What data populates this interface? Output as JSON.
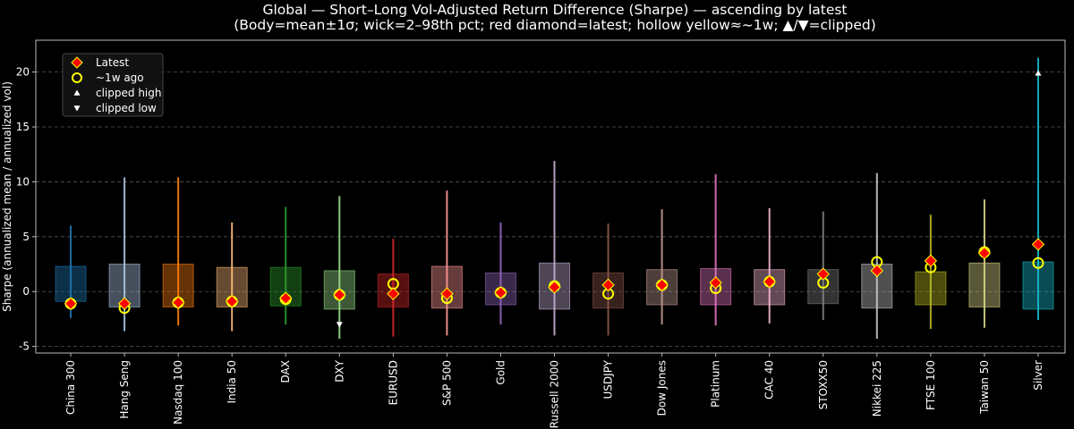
{
  "chart_data": {
    "type": "range",
    "title": "Global — Short–Long Vol-Adjusted Return Difference (Sharpe) — ascending by latest",
    "subtitle": "(Body=mean±1σ; wick=2–98th pct; red diamond=latest; hollow yellow≈~1w; ▲/▼=clipped)",
    "y_label": "Sharpe (annualized mean / annualized vol)",
    "categories": [
      "China 300",
      "Hang Seng",
      "Nasdaq 100",
      "India 50",
      "DAX",
      "DXY",
      "EURUSD",
      "S&P 500",
      "Gold",
      "Russell 2000",
      "USDJPY",
      "Dow Jones",
      "Platinum",
      "CAC 40",
      "STOXX50",
      "Nikkei 225",
      "FTSE 100",
      "Taiwan 50",
      "Silver"
    ],
    "colors": [
      "#1f77b4",
      "#aec7e8",
      "#ff7f0e",
      "#ffbb78",
      "#2ca02c",
      "#98df8a",
      "#d62728",
      "#ff9896",
      "#9467bd",
      "#c5b0d5",
      "#8c564b",
      "#c49c94",
      "#e377c2",
      "#f7b6d2",
      "#7f7f7f",
      "#c7c7c7",
      "#bcbd22",
      "#dbdb8d",
      "#17becf"
    ],
    "body_top": [
      2.3,
      2.5,
      2.5,
      2.2,
      2.2,
      1.9,
      1.6,
      2.3,
      1.7,
      2.6,
      1.7,
      2.0,
      2.1,
      2.0,
      2.0,
      2.5,
      1.8,
      2.6,
      2.7
    ],
    "body_bottom": [
      -0.9,
      -1.4,
      -1.4,
      -1.4,
      -1.3,
      -1.6,
      -1.4,
      -1.5,
      -1.2,
      -1.6,
      -1.5,
      -1.2,
      -1.2,
      -1.2,
      -1.1,
      -1.5,
      -1.2,
      -1.4,
      -1.6
    ],
    "wick_top": [
      6.0,
      10.4,
      10.4,
      6.3,
      7.7,
      8.7,
      4.8,
      9.2,
      6.3,
      11.9,
      6.2,
      7.5,
      10.7,
      7.6,
      7.3,
      10.8,
      7.0,
      8.4,
      21.3
    ],
    "wick_bottom": [
      -2.4,
      -3.6,
      -3.1,
      -3.6,
      -3.0,
      -4.3,
      -4.1,
      -4.0,
      -3.0,
      -4.0,
      -4.0,
      -3.0,
      -3.1,
      -2.9,
      -2.6,
      -4.3,
      -3.4,
      -3.3,
      -2.6
    ],
    "series": [
      {
        "name": "Latest",
        "color": "#ff0000",
        "values": [
          -1.1,
          -1.1,
          -1.0,
          -0.9,
          -0.6,
          -0.3,
          -0.2,
          -0.2,
          -0.1,
          0.4,
          0.6,
          0.6,
          0.8,
          0.9,
          1.6,
          1.9,
          2.8,
          3.5,
          4.3
        ]
      },
      {
        "name": "~1w ago",
        "color": "#ffff00",
        "values": [
          -1.1,
          -1.5,
          -1.0,
          -0.9,
          -0.7,
          -0.3,
          0.7,
          -0.6,
          -0.1,
          0.5,
          -0.2,
          0.6,
          0.3,
          0.9,
          0.8,
          2.7,
          2.2,
          3.6,
          2.6
        ]
      },
      {
        "name": "clipped high",
        "color": "#ffffff",
        "values": [
          null,
          null,
          null,
          null,
          null,
          null,
          null,
          null,
          null,
          null,
          null,
          null,
          null,
          null,
          null,
          null,
          null,
          null,
          19.9
        ]
      },
      {
        "name": "clipped low",
        "color": "#ffffff",
        "values": [
          null,
          null,
          null,
          null,
          null,
          -3.0,
          null,
          null,
          null,
          null,
          null,
          null,
          null,
          null,
          null,
          null,
          null,
          null,
          null
        ]
      }
    ],
    "ylim": [
      -5.6,
      22.9
    ],
    "yticks": [
      -5,
      0,
      5,
      10,
      15,
      20
    ],
    "grid": true
  }
}
